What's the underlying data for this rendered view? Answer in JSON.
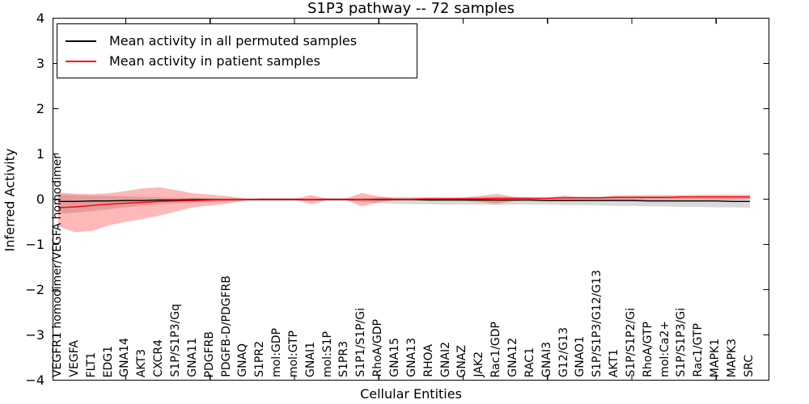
{
  "figure": {
    "title": "S1P3 pathway -- 72 samples",
    "xlabel": "Cellular Entities",
    "ylabel": "Inferred Activity"
  },
  "legend": {
    "entries": [
      {
        "label": "Mean activity in all permuted samples",
        "color": "#000000"
      },
      {
        "label": "Mean activity in patient samples",
        "color": "#ff0000"
      }
    ]
  },
  "chart_data": {
    "type": "line",
    "title": "S1P3 pathway -- 72 samples",
    "xlabel": "Cellular Entities",
    "ylabel": "Inferred Activity",
    "ylim": [
      -4,
      4
    ],
    "yticks": [
      4,
      3,
      2,
      1,
      0,
      -1,
      -2,
      -3,
      -4
    ],
    "grid": false,
    "legend_position": "upper left",
    "xtick_major_positions_1based": [
      5,
      10,
      15,
      20,
      25,
      30,
      35,
      40
    ],
    "categories": [
      "VEGFR1 homodimer/VEGFA homodimer",
      "VEGFA",
      "FLT1",
      "EDG1",
      "GNA14",
      "AKT3",
      "CXCR4",
      "S1P/S1P3/Gq",
      "GNA11",
      "PDGFRB",
      "PDGFB-D/PDGFRB",
      "GNAQ",
      "S1PR2",
      "mol:GDP",
      "mol:GTP",
      "GNAI1",
      "mol:S1P",
      "S1PR3",
      "S1P1/S1P/Gi",
      "RhoA/GDP",
      "GNA15",
      "GNA13",
      "RHOA",
      "GNAI2",
      "GNAZ",
      "JAK2",
      "Rac1/GDP",
      "GNA12",
      "RAC1",
      "GNAI3",
      "G12/G13",
      "GNAO1",
      "S1P/S1P3/G12/G13",
      "AKT1",
      "S1P/S1P2/Gi",
      "RhoA/GTP",
      "mol:Ca2+",
      "S1P/S1P3/Gi",
      "Rac1/GTP",
      "MAPK1",
      "MAPK3",
      "SRC"
    ],
    "series": [
      {
        "name": "Mean activity in all permuted samples",
        "color": "#000000",
        "band_color": "rgba(0,0,0,0.15)",
        "values": [
          -0.05,
          -0.05,
          -0.04,
          -0.04,
          -0.03,
          -0.03,
          -0.02,
          -0.02,
          -0.01,
          -0.01,
          -0.01,
          -0.01,
          -0.01,
          -0.01,
          -0.01,
          -0.01,
          -0.01,
          -0.01,
          -0.01,
          -0.01,
          -0.01,
          -0.01,
          -0.02,
          -0.02,
          -0.02,
          -0.02,
          -0.02,
          -0.02,
          -0.02,
          -0.03,
          -0.03,
          -0.03,
          -0.03,
          -0.03,
          -0.03,
          -0.04,
          -0.04,
          -0.04,
          -0.04,
          -0.04,
          -0.05,
          -0.05
        ],
        "band_upper": [
          0.1,
          0.09,
          0.08,
          0.07,
          0.06,
          0.05,
          0.04,
          0.03,
          0.03,
          0.02,
          0.02,
          0.02,
          0.01,
          0.01,
          0.01,
          0.02,
          0.01,
          0.01,
          0.03,
          0.04,
          0.05,
          0.05,
          0.05,
          0.05,
          0.05,
          0.05,
          0.05,
          0.05,
          0.05,
          0.05,
          0.05,
          0.06,
          0.06,
          0.06,
          0.06,
          0.06,
          0.06,
          0.06,
          0.06,
          0.06,
          0.06,
          0.06
        ],
        "band_lower": [
          -0.32,
          -0.3,
          -0.26,
          -0.22,
          -0.18,
          -0.14,
          -0.11,
          -0.09,
          -0.07,
          -0.06,
          -0.05,
          -0.04,
          -0.03,
          -0.03,
          -0.03,
          -0.04,
          -0.03,
          -0.03,
          -0.06,
          -0.09,
          -0.1,
          -0.11,
          -0.11,
          -0.12,
          -0.12,
          -0.12,
          -0.13,
          -0.12,
          -0.12,
          -0.12,
          -0.13,
          -0.13,
          -0.14,
          -0.15,
          -0.15,
          -0.16,
          -0.16,
          -0.17,
          -0.17,
          -0.18,
          -0.18,
          -0.19
        ]
      },
      {
        "name": "Mean activity in patient samples",
        "color": "#ff0000",
        "band_color": "rgba(255,0,0,0.28)",
        "values": [
          -0.19,
          -0.17,
          -0.14,
          -0.11,
          -0.09,
          -0.07,
          -0.05,
          -0.04,
          -0.03,
          -0.02,
          -0.01,
          -0.01,
          0.0,
          0.0,
          0.0,
          -0.01,
          0.0,
          0.0,
          -0.01,
          0.0,
          0.0,
          0.0,
          0.01,
          0.01,
          0.01,
          0.01,
          0.02,
          0.02,
          0.02,
          0.02,
          0.03,
          0.03,
          0.03,
          0.04,
          0.04,
          0.04,
          0.04,
          0.05,
          0.05,
          0.05,
          0.05,
          0.05
        ],
        "band_upper": [
          0.15,
          0.12,
          0.11,
          0.13,
          0.18,
          0.24,
          0.26,
          0.2,
          0.13,
          0.1,
          0.07,
          0.02,
          0.01,
          0.01,
          0.01,
          0.09,
          0.01,
          0.01,
          0.14,
          0.06,
          0.02,
          0.02,
          0.02,
          0.02,
          0.03,
          0.07,
          0.12,
          0.05,
          0.03,
          0.03,
          0.08,
          0.04,
          0.04,
          0.08,
          0.09,
          0.09,
          0.09,
          0.09,
          0.1,
          0.1,
          0.1,
          0.1
        ],
        "band_lower": [
          -0.6,
          -0.73,
          -0.7,
          -0.58,
          -0.5,
          -0.44,
          -0.36,
          -0.27,
          -0.18,
          -0.14,
          -0.1,
          -0.03,
          -0.01,
          -0.01,
          -0.01,
          -0.11,
          -0.01,
          -0.01,
          -0.16,
          -0.07,
          -0.02,
          -0.02,
          -0.02,
          -0.02,
          -0.03,
          -0.06,
          -0.1,
          -0.04,
          -0.02,
          -0.02,
          -0.05,
          -0.02,
          -0.01,
          -0.03,
          -0.02,
          -0.02,
          -0.02,
          -0.01,
          -0.01,
          -0.01,
          -0.01,
          0.0
        ]
      }
    ]
  }
}
